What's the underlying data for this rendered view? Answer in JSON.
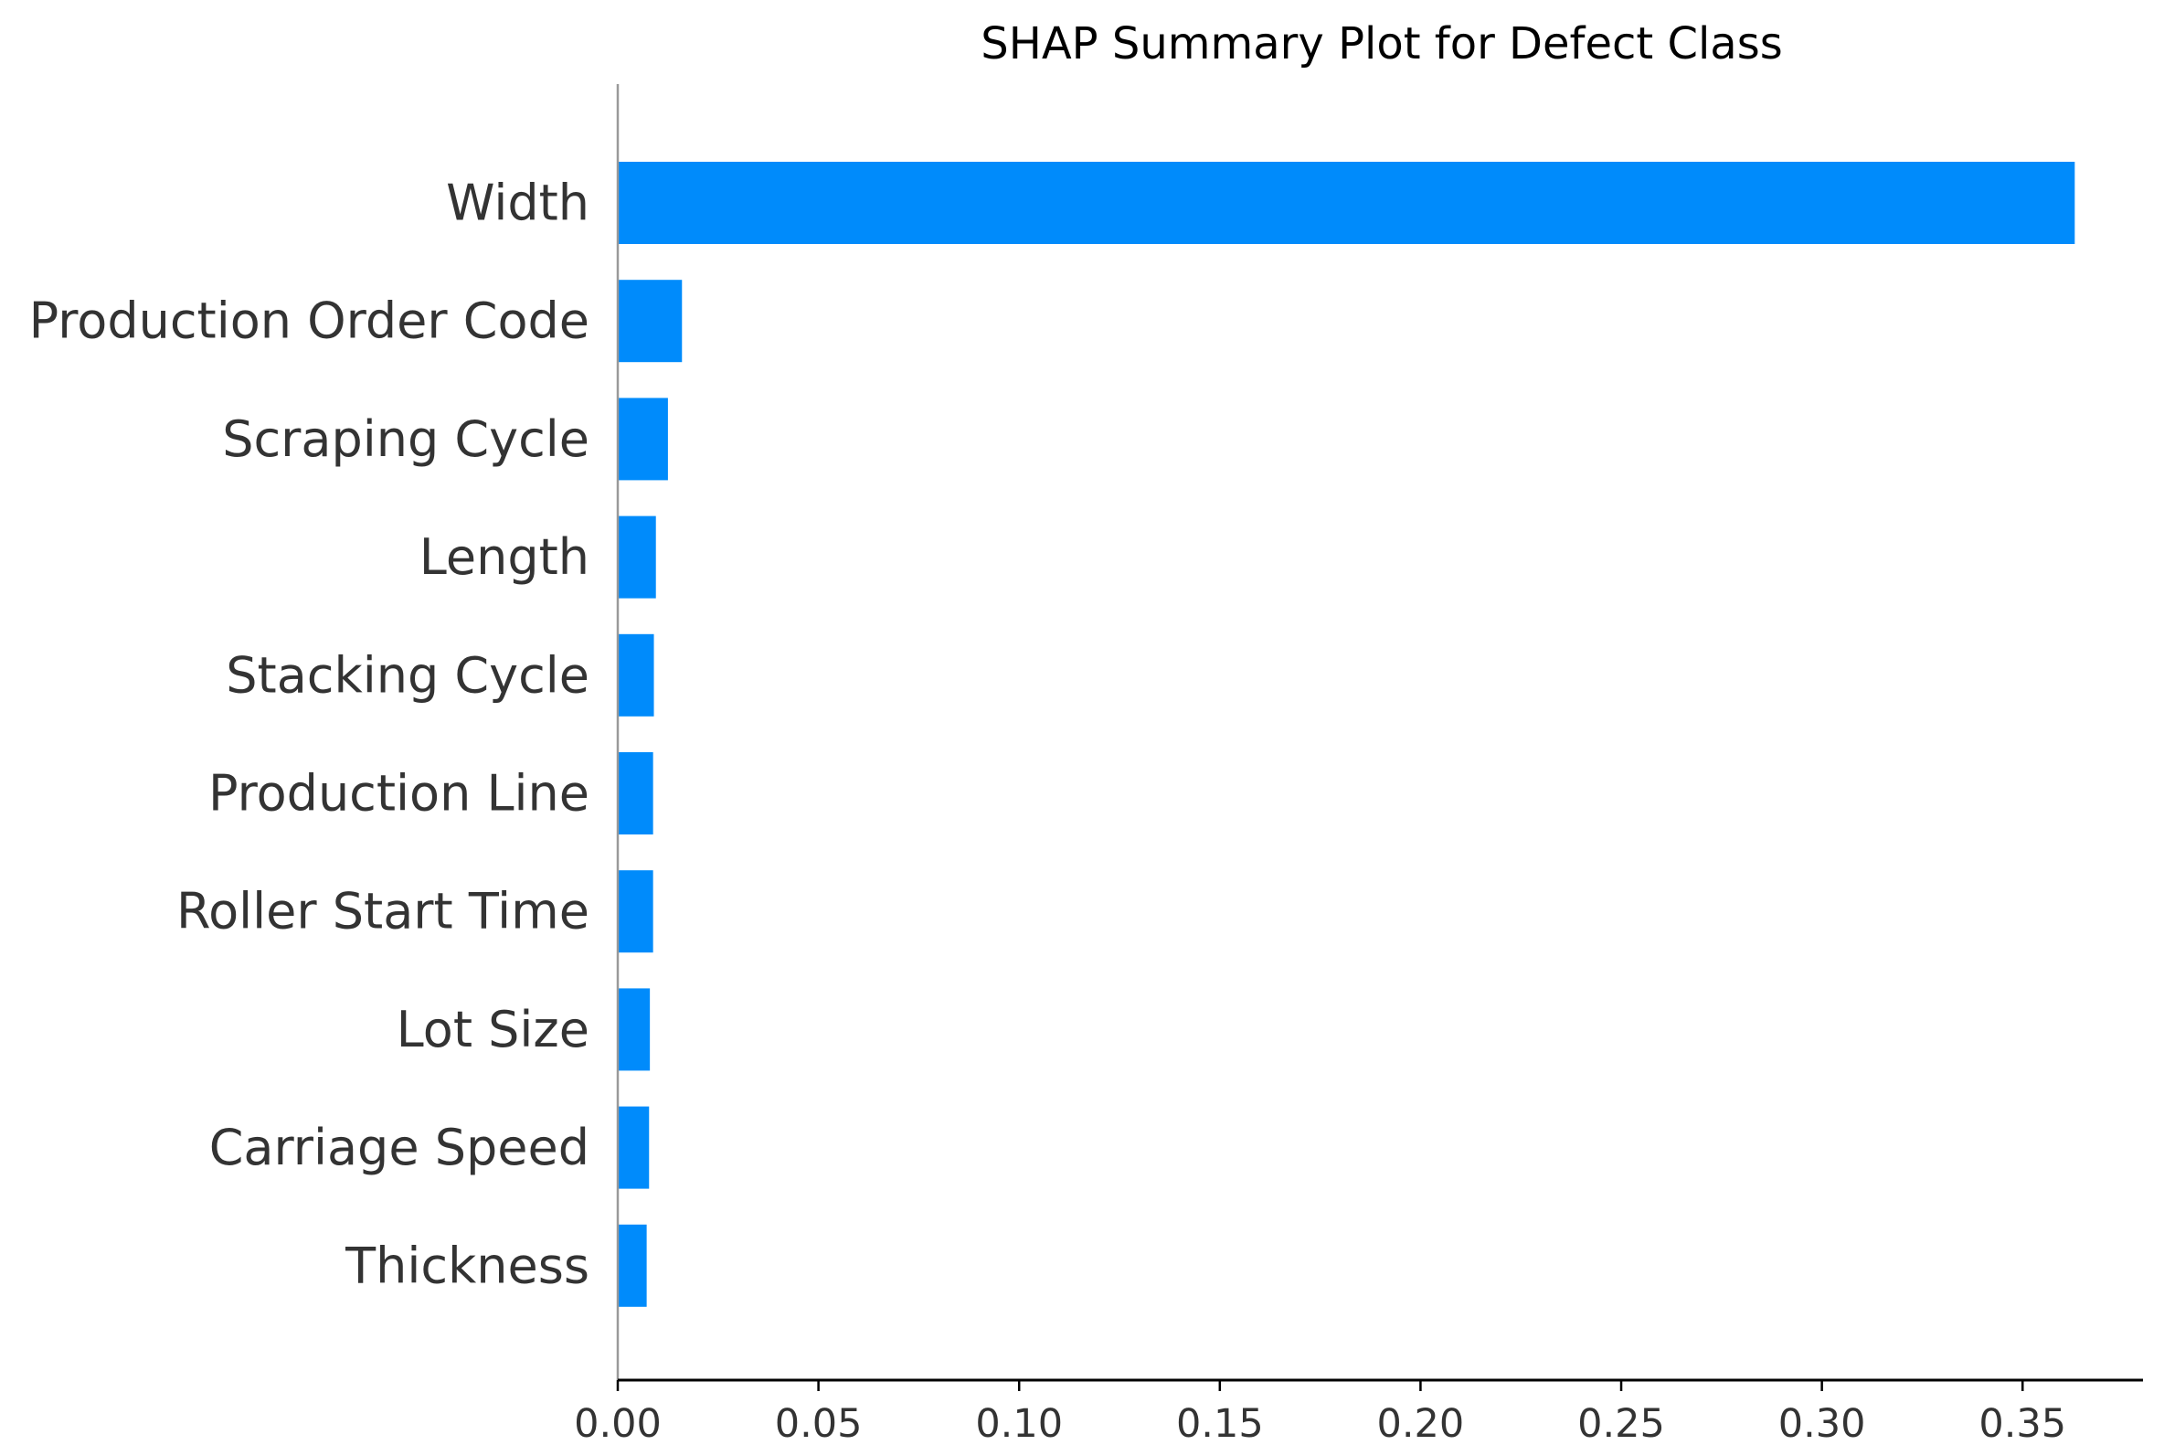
{
  "chart_data": {
    "type": "bar",
    "orientation": "horizontal",
    "title": "SHAP Summary Plot for Defect Class",
    "xlabel": "",
    "ylabel": "",
    "categories": [
      "Width",
      "Production Order Code",
      "Scraping Cycle",
      "Length",
      "Stacking Cycle",
      "Production Line",
      "Roller Start Time",
      "Lot Size",
      "Carriage Speed",
      "Thickness"
    ],
    "values": [
      0.363,
      0.016,
      0.0125,
      0.0095,
      0.009,
      0.0088,
      0.0088,
      0.008,
      0.0078,
      0.0072
    ],
    "xlim": [
      0,
      0.38
    ],
    "xticks": [
      0.0,
      0.05,
      0.1,
      0.15,
      0.2,
      0.25,
      0.3,
      0.35
    ],
    "xtick_labels": [
      "0.00",
      "0.05",
      "0.10",
      "0.15",
      "0.20",
      "0.25",
      "0.30",
      "0.35"
    ],
    "grid": false,
    "bar_color": "#008bfb",
    "axis_color": "#000000",
    "zero_line_color": "#999999",
    "text_color": "#333333"
  }
}
